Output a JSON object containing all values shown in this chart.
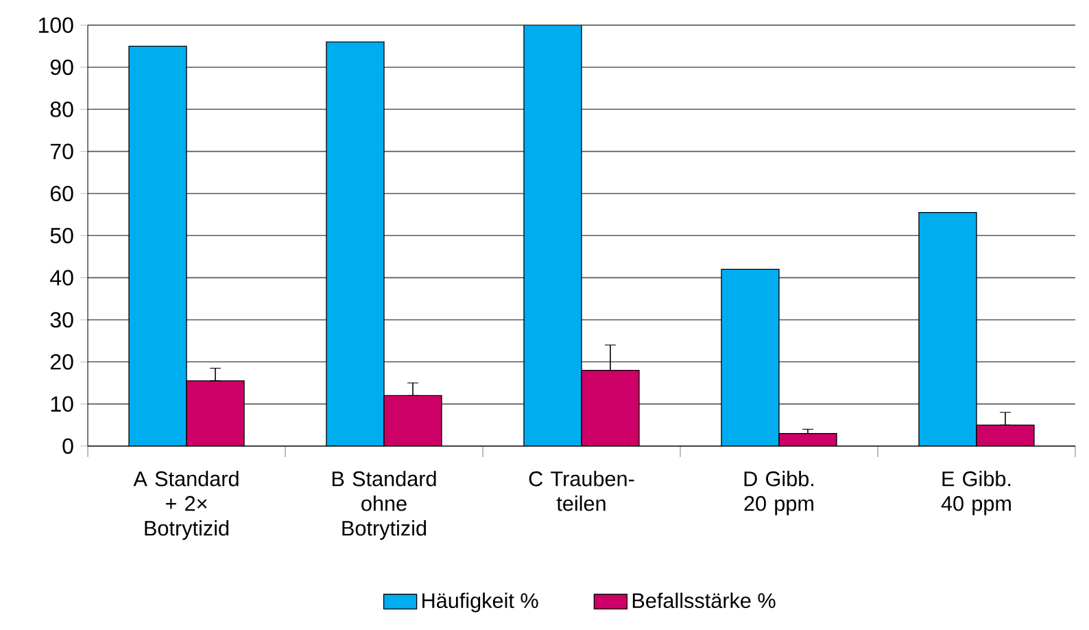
{
  "chart_data": {
    "type": "bar",
    "categories": [
      "A Standard + 2× Botrytizid",
      "B Standard ohne Botrytizid",
      "C Trauben-teilen",
      "D Gibb. 20 ppm",
      "E Gibb. 40 ppm"
    ],
    "series": [
      {
        "name": "Häufigkeit %",
        "color": "#00adef",
        "values": [
          95,
          96,
          100,
          42,
          55.5
        ]
      },
      {
        "name": "Befallsstärke %",
        "color": "#cc0066",
        "values": [
          15.5,
          12,
          18,
          3,
          5
        ],
        "errors": [
          [
            15.5,
            18.5
          ],
          [
            12,
            15
          ],
          [
            18,
            24
          ],
          [
            3,
            4
          ],
          [
            5,
            8
          ]
        ]
      }
    ],
    "ylim": [
      0,
      100
    ],
    "yticks": [
      0,
      10,
      20,
      30,
      40,
      50,
      60,
      70,
      80,
      90,
      100
    ],
    "grid": "y",
    "legend": "bottom"
  }
}
